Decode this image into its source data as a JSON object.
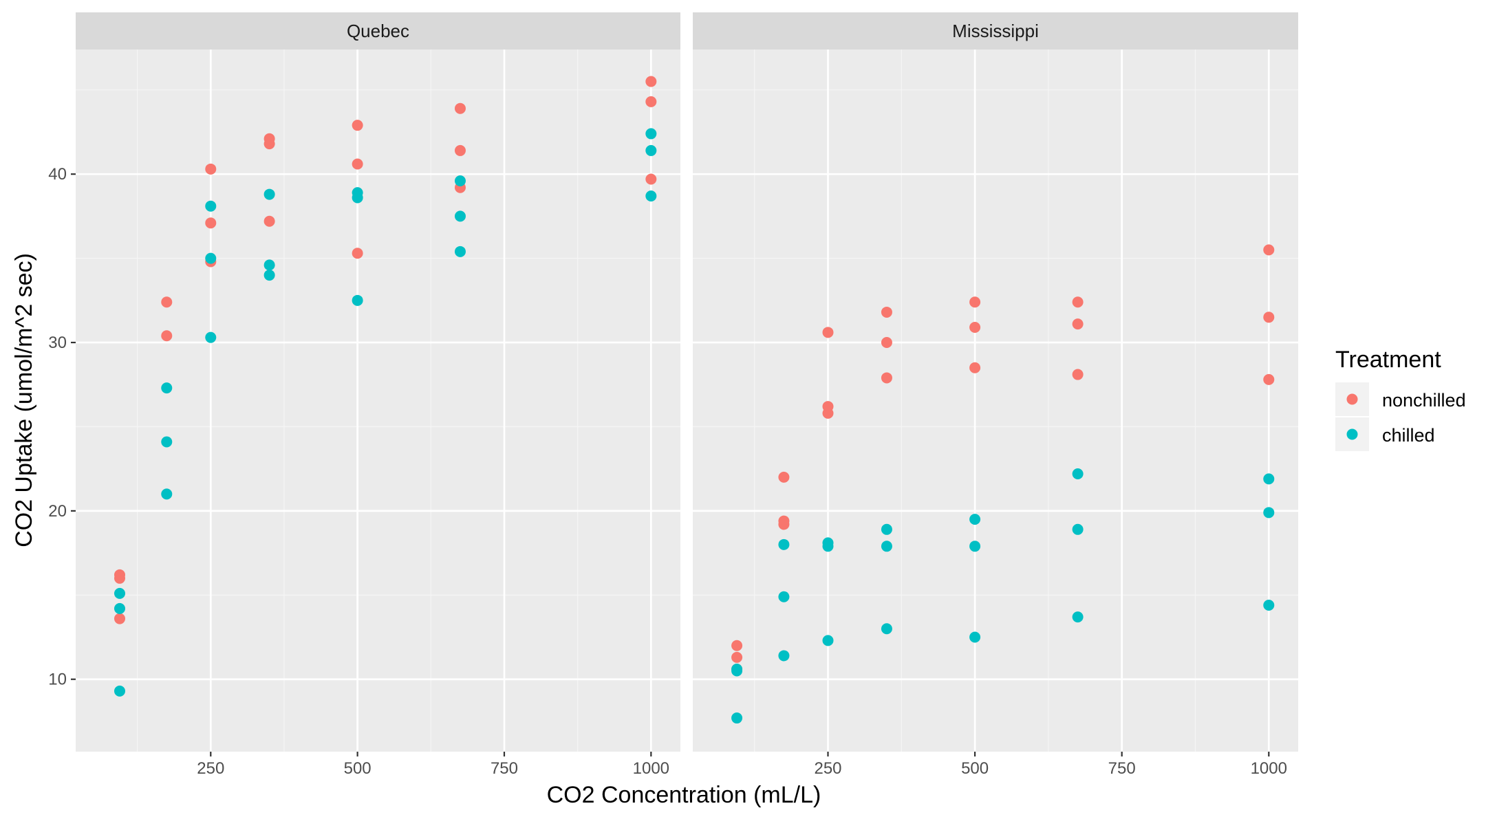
{
  "chart_data": {
    "type": "scatter",
    "xlabel": "CO2 Concentration (mL/L)",
    "ylabel": "CO2 Uptake (umol/m^2 sec)",
    "xlim": [
      20,
      1050
    ],
    "ylim": [
      5.7,
      47.4
    ],
    "x_ticks": [
      250,
      500,
      750,
      1000
    ],
    "x_tick_labels": [
      "250",
      "500",
      "750",
      "1000"
    ],
    "y_ticks": [
      10,
      20,
      30,
      40
    ],
    "y_tick_labels": [
      "10",
      "20",
      "30",
      "40"
    ],
    "grid": true,
    "legend": {
      "title": "Treatment",
      "placement": "right",
      "entries": [
        {
          "label": "nonchilled",
          "color": "#F8766D"
        },
        {
          "label": "chilled",
          "color": "#00BFC4"
        }
      ]
    },
    "facets": [
      {
        "name": "Quebec",
        "series": [
          {
            "name": "nonchilled",
            "color": "#F8766D",
            "points": [
              [
                95,
                16.0
              ],
              [
                95,
                13.6
              ],
              [
                95,
                16.2
              ],
              [
                175,
                30.4
              ],
              [
                175,
                32.4
              ],
              [
                250,
                34.8
              ],
              [
                250,
                37.1
              ],
              [
                250,
                40.3
              ],
              [
                350,
                37.2
              ],
              [
                350,
                41.8
              ],
              [
                350,
                42.1
              ],
              [
                500,
                35.3
              ],
              [
                500,
                40.6
              ],
              [
                500,
                42.9
              ],
              [
                675,
                39.2
              ],
              [
                675,
                41.4
              ],
              [
                675,
                43.9
              ],
              [
                1000,
                39.7
              ],
              [
                1000,
                44.3
              ],
              [
                1000,
                45.5
              ]
            ]
          },
          {
            "name": "chilled",
            "color": "#00BFC4",
            "points": [
              [
                95,
                14.2
              ],
              [
                95,
                9.3
              ],
              [
                95,
                15.1
              ],
              [
                175,
                24.1
              ],
              [
                175,
                27.3
              ],
              [
                175,
                21.0
              ],
              [
                250,
                30.3
              ],
              [
                250,
                35.0
              ],
              [
                250,
                38.1
              ],
              [
                350,
                34.6
              ],
              [
                350,
                38.8
              ],
              [
                350,
                34.0
              ],
              [
                500,
                32.5
              ],
              [
                500,
                38.6
              ],
              [
                500,
                38.9
              ],
              [
                675,
                35.4
              ],
              [
                675,
                37.5
              ],
              [
                675,
                39.6
              ],
              [
                1000,
                38.7
              ],
              [
                1000,
                42.4
              ],
              [
                1000,
                41.4
              ]
            ]
          }
        ]
      },
      {
        "name": "Mississippi",
        "series": [
          {
            "name": "nonchilled",
            "color": "#F8766D",
            "points": [
              [
                95,
                10.6
              ],
              [
                95,
                12.0
              ],
              [
                95,
                11.3
              ],
              [
                175,
                19.2
              ],
              [
                175,
                22.0
              ],
              [
                175,
                19.4
              ],
              [
                250,
                26.2
              ],
              [
                250,
                30.6
              ],
              [
                250,
                25.8
              ],
              [
                350,
                30.0
              ],
              [
                350,
                31.8
              ],
              [
                350,
                27.9
              ],
              [
                500,
                30.9
              ],
              [
                500,
                32.4
              ],
              [
                500,
                28.5
              ],
              [
                675,
                32.4
              ],
              [
                675,
                31.1
              ],
              [
                675,
                28.1
              ],
              [
                1000,
                35.5
              ],
              [
                1000,
                31.5
              ],
              [
                1000,
                27.8
              ]
            ]
          },
          {
            "name": "chilled",
            "color": "#00BFC4",
            "points": [
              [
                95,
                7.7
              ],
              [
                95,
                10.6
              ],
              [
                95,
                10.5
              ],
              [
                175,
                11.4
              ],
              [
                175,
                18.0
              ],
              [
                175,
                14.9
              ],
              [
                250,
                12.3
              ],
              [
                250,
                17.9
              ],
              [
                250,
                18.1
              ],
              [
                350,
                13.0
              ],
              [
                350,
                17.9
              ],
              [
                350,
                18.9
              ],
              [
                500,
                12.5
              ],
              [
                500,
                17.9
              ],
              [
                500,
                19.5
              ],
              [
                675,
                13.7
              ],
              [
                675,
                18.9
              ],
              [
                675,
                22.2
              ],
              [
                1000,
                14.4
              ],
              [
                1000,
                19.9
              ],
              [
                1000,
                21.9
              ]
            ]
          }
        ]
      }
    ]
  },
  "colors": {
    "panel_background": "#EBEBEB",
    "strip_background": "#D9D9D9",
    "grid_major": "#FFFFFF",
    "grid_minor": "#F5F5F5",
    "nonchilled": "#F8766D",
    "chilled": "#00BFC4"
  }
}
